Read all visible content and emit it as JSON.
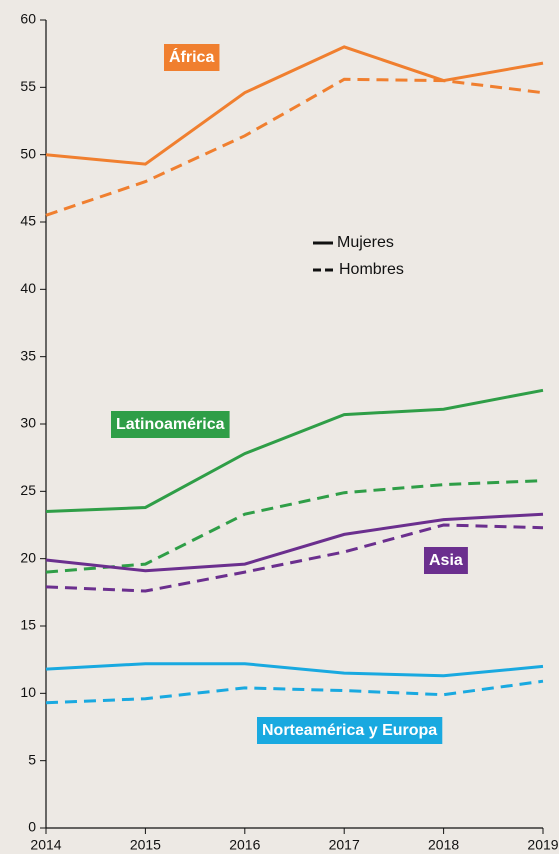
{
  "chart_data": {
    "type": "line",
    "x": [
      2014,
      2015,
      2016,
      2017,
      2018,
      2019
    ],
    "xlim": [
      2014,
      2019
    ],
    "xticks": [
      2014,
      2015,
      2016,
      2017,
      2018,
      2019
    ],
    "ylim": [
      0,
      60
    ],
    "yticks": [
      0,
      5,
      10,
      15,
      20,
      25,
      30,
      35,
      40,
      45,
      50,
      55,
      60
    ],
    "grid": false,
    "legend": {
      "solid": "Mujeres",
      "dashed": "Hombres"
    },
    "regions": [
      {
        "label": "África",
        "color": "#f07f2f",
        "mujeres": [
          50.0,
          49.3,
          54.6,
          58.0,
          55.5,
          56.8
        ],
        "hombres": [
          45.5,
          48.0,
          51.4,
          55.6,
          55.5,
          54.6
        ]
      },
      {
        "label": "Latinoamérica",
        "color": "#2f9e47",
        "mujeres": [
          23.5,
          23.8,
          27.8,
          30.7,
          31.1,
          32.5
        ],
        "hombres": [
          19.0,
          19.6,
          23.3,
          24.9,
          25.5,
          25.8
        ]
      },
      {
        "label": "Asia",
        "color": "#6b2f8e",
        "mujeres": [
          19.9,
          19.1,
          19.6,
          21.8,
          22.9,
          23.3
        ],
        "hombres": [
          17.9,
          17.6,
          19.0,
          20.5,
          22.5,
          22.3
        ]
      },
      {
        "label": "Norteamérica y Europa",
        "color": "#19a9e0",
        "mujeres": [
          11.8,
          12.2,
          12.2,
          11.5,
          11.3,
          12.0
        ],
        "hombres": [
          9.3,
          9.6,
          10.4,
          10.2,
          9.9,
          10.9
        ]
      }
    ]
  }
}
